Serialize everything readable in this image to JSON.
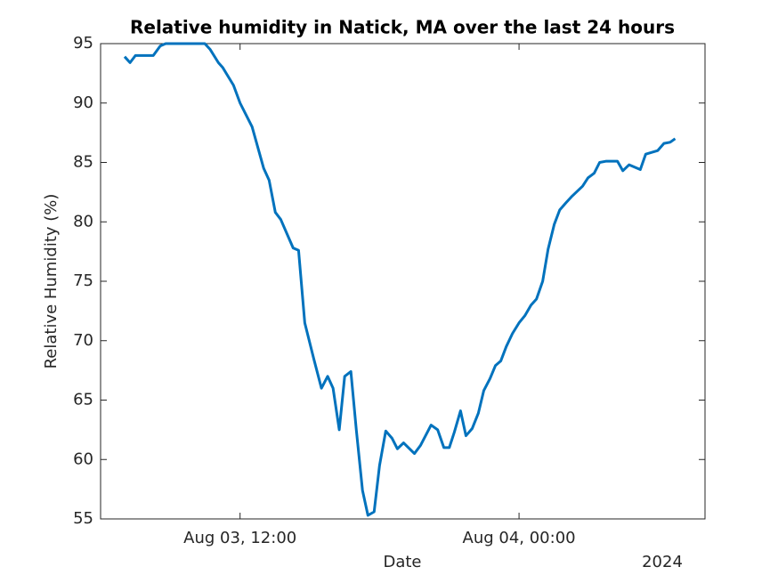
{
  "chart_data": {
    "type": "line",
    "title": "Relative humidity in Natick, MA over the last 24 hours",
    "xlabel": "Date",
    "ylabel": "Relative Humidity (%)",
    "x_year_label": "2024",
    "x": [
      "2024-08-03T07:02",
      "2024-08-03T07:16",
      "2024-08-03T07:30",
      "2024-08-03T08:16",
      "2024-08-03T08:34",
      "2024-08-03T08:48",
      "2024-08-03T10:29",
      "2024-08-03T10:43",
      "2024-08-03T11:04",
      "2024-08-03T11:15",
      "2024-08-03T11:43",
      "2024-08-03T12:00",
      "2024-08-03T12:31",
      "2024-08-03T13:01",
      "2024-08-03T13:15",
      "2024-08-03T13:31",
      "2024-08-03T13:45",
      "2024-08-03T14:01",
      "2024-08-03T14:17",
      "2024-08-03T14:31",
      "2024-08-03T14:47",
      "2024-08-03T15:10",
      "2024-08-03T15:30",
      "2024-08-03T15:46",
      "2024-08-03T16:00",
      "2024-08-03T16:16",
      "2024-08-03T16:30",
      "2024-08-03T16:46",
      "2024-08-03T17:00",
      "2024-08-03T17:16",
      "2024-08-03T17:30",
      "2024-08-03T17:46",
      "2024-08-03T18:00",
      "2024-08-03T18:16",
      "2024-08-03T18:32",
      "2024-08-03T18:46",
      "2024-08-03T19:02",
      "2024-08-03T19:30",
      "2024-08-03T19:46",
      "2024-08-03T20:13",
      "2024-08-03T20:30",
      "2024-08-03T20:46",
      "2024-08-03T21:00",
      "2024-08-03T21:13",
      "2024-08-03T21:29",
      "2024-08-03T21:43",
      "2024-08-03T21:59",
      "2024-08-03T22:15",
      "2024-08-03T22:29",
      "2024-08-03T22:45",
      "2024-08-03T22:59",
      "2024-08-03T23:13",
      "2024-08-03T23:27",
      "2024-08-03T23:43",
      "2024-08-04T00:00",
      "2024-08-04T00:15",
      "2024-08-04T00:31",
      "2024-08-04T00:45",
      "2024-08-04T01:01",
      "2024-08-04T01:15",
      "2024-08-04T01:31",
      "2024-08-04T01:45",
      "2024-08-04T02:01",
      "2024-08-04T02:15",
      "2024-08-04T02:44",
      "2024-08-04T02:58",
      "2024-08-04T03:14",
      "2024-08-04T03:28",
      "2024-08-04T03:44",
      "2024-08-04T04:14",
      "2024-08-04T04:28",
      "2024-08-04T04:44",
      "2024-08-04T05:13",
      "2024-08-04T05:27",
      "2024-08-04T05:58",
      "2024-08-04T06:14",
      "2024-08-04T06:30",
      "2024-08-04T06:43"
    ],
    "series": [
      {
        "name": "Relative humidity",
        "color": "#0072bd",
        "values": [
          93.9,
          93.4,
          94,
          94,
          94.8,
          95,
          95,
          94.5,
          93.4,
          93,
          91.5,
          90,
          88,
          84.5,
          83.5,
          80.8,
          80.2,
          79,
          77.8,
          77.6,
          71.5,
          68.5,
          66,
          67,
          66,
          62.5,
          67,
          67.4,
          62.5,
          57.4,
          55.3,
          55.6,
          59.5,
          62.4,
          61.8,
          60.9,
          61.4,
          60.5,
          61.2,
          62.9,
          62.5,
          61,
          61,
          62.3,
          64.1,
          62,
          62.6,
          63.9,
          65.8,
          66.8,
          67.9,
          68.3,
          69.5,
          70.6,
          71.5,
          72.1,
          73,
          73.5,
          75,
          77.7,
          79.8,
          81,
          81.6,
          82.1,
          83,
          83.7,
          84.1,
          85,
          85.1,
          85.1,
          84.3,
          84.8,
          84.4,
          85.7,
          86,
          86.6,
          86.7,
          87
        ]
      }
    ],
    "xlim": [
      "2024-08-03T06:00",
      "2024-08-04T08:00"
    ],
    "xticks": [
      {
        "value": "2024-08-03T12:00",
        "label": "Aug 03, 12:00"
      },
      {
        "value": "2024-08-04T00:00",
        "label": "Aug 04, 00:00"
      }
    ],
    "ylim": [
      55,
      95
    ],
    "yticks": [
      55,
      60,
      65,
      70,
      75,
      80,
      85,
      90,
      95
    ],
    "grid": false
  }
}
